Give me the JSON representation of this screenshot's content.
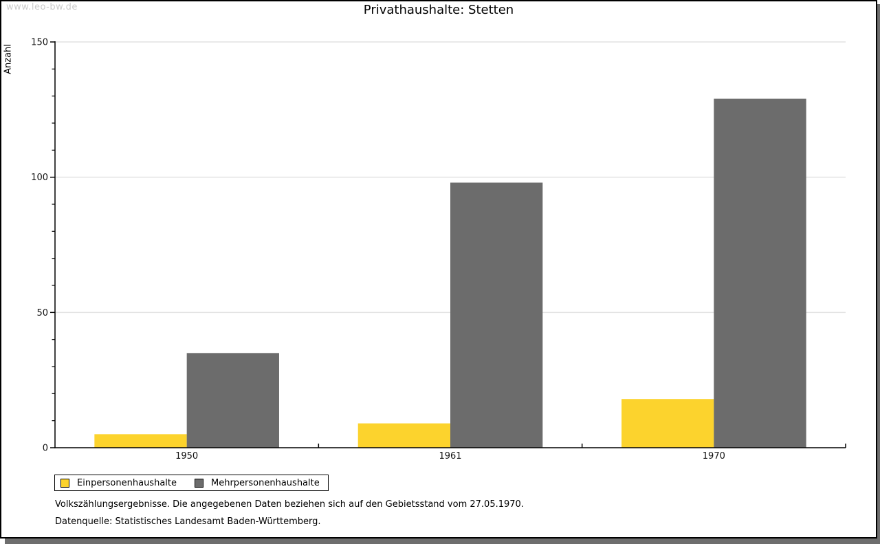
{
  "watermark": "www.leo-bw.de",
  "title": "Privathaushalte: Stetten",
  "chart_data": {
    "type": "bar",
    "title": "Privathaushalte: Stetten",
    "xlabel": "",
    "ylabel": "Anzahl",
    "categories": [
      "1950",
      "1961",
      "1970"
    ],
    "series": [
      {
        "name": "Einpersonenhaushalte",
        "color": "#FCD32D",
        "values": [
          5,
          9,
          18
        ]
      },
      {
        "name": "Mehrpersonenhaushalte",
        "color": "#6C6C6C",
        "values": [
          35,
          98,
          129
        ]
      }
    ],
    "ylim": [
      0,
      150
    ],
    "y_major_ticks": [
      0,
      50,
      100,
      150
    ],
    "y_minor_step": 10,
    "grid": true,
    "gridline_color": "#e2e2e2",
    "legend_position": "bottom-left"
  },
  "footnotes": [
    "Volkszählungsergebnisse. Die angegebenen Daten beziehen sich auf den Gebietsstand vom 27.05.1970.",
    "Datenquelle: Statistisches Landesamt Baden-Württemberg."
  ]
}
